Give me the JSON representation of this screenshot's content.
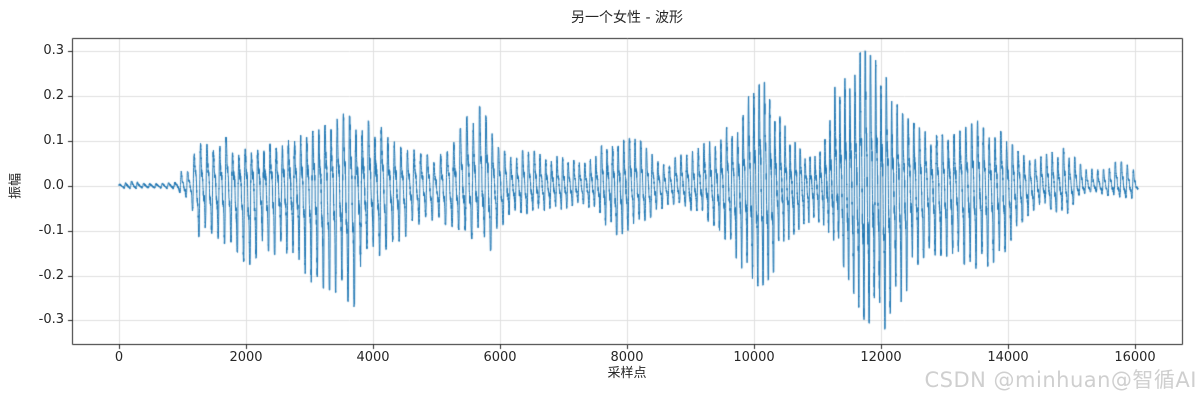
{
  "watermark_text": "CSDN @minhuan@智循AI",
  "chart_data": {
    "type": "line",
    "title": "另一个女性 - 波形",
    "xlabel": "采样点",
    "ylabel": "振幅",
    "legend": null,
    "grid": true,
    "grid_color": "#e0e0e0",
    "spine_color": "#262626",
    "line_color": "#1f77b4",
    "xlim": [
      -740,
      16740
    ],
    "ylim": [
      -0.355,
      0.33
    ],
    "x_ticks": [
      0,
      2000,
      4000,
      6000,
      8000,
      10000,
      12000,
      14000,
      16000
    ],
    "x_tick_labels": [
      "0",
      "2000",
      "4000",
      "6000",
      "8000",
      "10000",
      "12000",
      "14000",
      "16000"
    ],
    "y_ticks": [
      0.3,
      0.2,
      0.1,
      0.0,
      -0.1,
      -0.2,
      -0.3
    ],
    "y_tick_labels": [
      "0.3",
      "0.2",
      "0.1",
      "0.0",
      "-0.1",
      "-0.2",
      "-0.3"
    ],
    "sample_count": 16050,
    "pitch_period_samples": 92,
    "envelope_points": [
      [
        0,
        0.004,
        -0.004
      ],
      [
        260,
        0.012,
        -0.008
      ],
      [
        320,
        0.006,
        -0.005
      ],
      [
        600,
        0.005,
        -0.005
      ],
      [
        900,
        0.008,
        -0.008
      ],
      [
        980,
        0.042,
        -0.022
      ],
      [
        1120,
        0.028,
        -0.028
      ],
      [
        1230,
        0.1,
        -0.115
      ],
      [
        1450,
        0.09,
        -0.105
      ],
      [
        1650,
        0.114,
        -0.128
      ],
      [
        1850,
        0.085,
        -0.145
      ],
      [
        2020,
        0.082,
        -0.182
      ],
      [
        2200,
        0.08,
        -0.155
      ],
      [
        2350,
        0.092,
        -0.145
      ],
      [
        2550,
        0.107,
        -0.162
      ],
      [
        2750,
        0.11,
        -0.19
      ],
      [
        2960,
        0.115,
        -0.205
      ],
      [
        3060,
        0.123,
        -0.22
      ],
      [
        3210,
        0.13,
        -0.228
      ],
      [
        3380,
        0.155,
        -0.235
      ],
      [
        3560,
        0.162,
        -0.252
      ],
      [
        3700,
        0.15,
        -0.27
      ],
      [
        3840,
        0.155,
        -0.19
      ],
      [
        4000,
        0.137,
        -0.176
      ],
      [
        4160,
        0.13,
        -0.145
      ],
      [
        4320,
        0.11,
        -0.134
      ],
      [
        4540,
        0.09,
        -0.11
      ],
      [
        4740,
        0.072,
        -0.088
      ],
      [
        4950,
        0.068,
        -0.076
      ],
      [
        5160,
        0.074,
        -0.088
      ],
      [
        5320,
        0.114,
        -0.094
      ],
      [
        5480,
        0.155,
        -0.116
      ],
      [
        5660,
        0.179,
        -0.122
      ],
      [
        5740,
        0.172,
        -0.14
      ],
      [
        5850,
        0.125,
        -0.145
      ],
      [
        6000,
        0.078,
        -0.094
      ],
      [
        6200,
        0.078,
        -0.066
      ],
      [
        6470,
        0.08,
        -0.062
      ],
      [
        6740,
        0.072,
        -0.058
      ],
      [
        7000,
        0.068,
        -0.055
      ],
      [
        7260,
        0.055,
        -0.035
      ],
      [
        7530,
        0.081,
        -0.062
      ],
      [
        7780,
        0.112,
        -0.111
      ],
      [
        7940,
        0.103,
        -0.107
      ],
      [
        8160,
        0.11,
        -0.086
      ],
      [
        8360,
        0.075,
        -0.072
      ],
      [
        8570,
        0.05,
        -0.049
      ],
      [
        8840,
        0.069,
        -0.037
      ],
      [
        9100,
        0.081,
        -0.065
      ],
      [
        9350,
        0.112,
        -0.086
      ],
      [
        9510,
        0.123,
        -0.111
      ],
      [
        9670,
        0.143,
        -0.148
      ],
      [
        9830,
        0.158,
        -0.19
      ],
      [
        9940,
        0.212,
        -0.206
      ],
      [
        10090,
        0.227,
        -0.228
      ],
      [
        10210,
        0.234,
        -0.213
      ],
      [
        10320,
        0.19,
        -0.19
      ],
      [
        10420,
        0.18,
        -0.148
      ],
      [
        10570,
        0.112,
        -0.12
      ],
      [
        10730,
        0.082,
        -0.094
      ],
      [
        10930,
        0.072,
        -0.082
      ],
      [
        11090,
        0.112,
        -0.086
      ],
      [
        11250,
        0.218,
        -0.12
      ],
      [
        11400,
        0.234,
        -0.176
      ],
      [
        11560,
        0.278,
        -0.235
      ],
      [
        11720,
        0.305,
        -0.3
      ],
      [
        11880,
        0.286,
        -0.311
      ],
      [
        12030,
        0.264,
        -0.332
      ],
      [
        12190,
        0.197,
        -0.266
      ],
      [
        12350,
        0.159,
        -0.257
      ],
      [
        12510,
        0.141,
        -0.19
      ],
      [
        12660,
        0.123,
        -0.161
      ],
      [
        12880,
        0.114,
        -0.154
      ],
      [
        13140,
        0.114,
        -0.16
      ],
      [
        13400,
        0.137,
        -0.183
      ],
      [
        13560,
        0.148,
        -0.19
      ],
      [
        13720,
        0.13,
        -0.176
      ],
      [
        13880,
        0.123,
        -0.161
      ],
      [
        14030,
        0.099,
        -0.134
      ],
      [
        14190,
        0.072,
        -0.086
      ],
      [
        14400,
        0.057,
        -0.055
      ],
      [
        14620,
        0.072,
        -0.048
      ],
      [
        14820,
        0.081,
        -0.063
      ],
      [
        14930,
        0.088,
        -0.07
      ],
      [
        15130,
        0.049,
        -0.02
      ],
      [
        15340,
        0.04,
        -0.012
      ],
      [
        15560,
        0.036,
        -0.022
      ],
      [
        15720,
        0.057,
        -0.024
      ],
      [
        15880,
        0.049,
        -0.03
      ],
      [
        16000,
        0.042,
        -0.026
      ],
      [
        16050,
        0.008,
        -0.005
      ]
    ]
  }
}
